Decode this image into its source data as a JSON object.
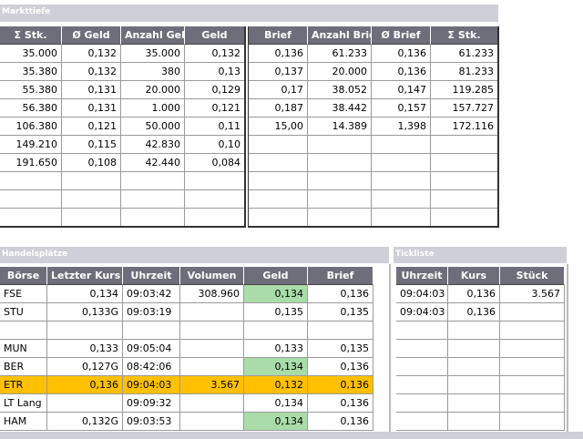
{
  "markttiefe": {
    "title": "Markttiefe",
    "bid": {
      "columns": [
        "Σ Stk.",
        "Ø Geld",
        "Anzahl Geld",
        "Geld"
      ],
      "rows": [
        [
          "35.000",
          "0,132",
          "35.000",
          "0,132"
        ],
        [
          "35.380",
          "0,132",
          "380",
          "0,13"
        ],
        [
          "55.380",
          "0,131",
          "20.000",
          "0,129"
        ],
        [
          "56.380",
          "0,131",
          "1.000",
          "0,121"
        ],
        [
          "106.380",
          "0,121",
          "50.000",
          "0,11"
        ],
        [
          "149.210",
          "0,115",
          "42.830",
          "0,10"
        ],
        [
          "191.650",
          "0,108",
          "42.440",
          "0,084"
        ]
      ]
    },
    "ask": {
      "columns": [
        "Brief",
        "Anzahl Brief",
        "Ø Brief",
        "Σ Stk."
      ],
      "rows": [
        [
          "0,136",
          "61.233",
          "0,136",
          "61.233"
        ],
        [
          "0,137",
          "20.000",
          "0,136",
          "81.233"
        ],
        [
          "0,17",
          "38.052",
          "0,147",
          "119.285"
        ],
        [
          "0,187",
          "38.442",
          "0,157",
          "157.727"
        ],
        [
          "15,00",
          "14.389",
          "1,398",
          "172.116"
        ]
      ]
    }
  },
  "handelsplaetze": {
    "title": "Handelsplätze",
    "columns": [
      "Börse",
      "Letzter Kurs",
      "Uhrzeit",
      "Volumen",
      "Geld",
      "Brief"
    ],
    "rows": [
      {
        "cells": [
          "FSE",
          "0,134",
          "09:03:42",
          "308.960",
          "0,134",
          "0,136"
        ],
        "geld_color": "#a9dca9"
      },
      {
        "cells": [
          "STU",
          "0,133G",
          "09:03:19",
          null,
          "0,135",
          "0,135"
        ]
      },
      null,
      {
        "cells": [
          "MUN",
          "0,133",
          "09:05:04",
          null,
          "0,133",
          "0,135"
        ]
      },
      {
        "cells": [
          "BER",
          "0,127G",
          "08:42:06",
          null,
          "0,134",
          "0,136"
        ],
        "geld_color": "#a9dca9"
      },
      {
        "cells": [
          "ETR",
          "0,136",
          "09:04:03",
          "3.567",
          "0,132",
          "0,136"
        ],
        "row_color": "#ffc000"
      },
      {
        "cells": [
          "LT Lang",
          null,
          "09:09:32",
          null,
          "0,134",
          "0,136"
        ]
      },
      {
        "cells": [
          "HAM",
          "0,132G",
          "09:03:53",
          null,
          "0,134",
          "0,136"
        ],
        "geld_color": "#a9dca9"
      }
    ]
  },
  "tickliste": {
    "title": "Tickliste",
    "columns": [
      "Uhrzeit",
      "Kurs",
      "Stück"
    ],
    "rows": [
      [
        "09:04:03",
        "0,136",
        "3.567"
      ],
      [
        "09:04:03",
        "0,136",
        null
      ]
    ]
  }
}
